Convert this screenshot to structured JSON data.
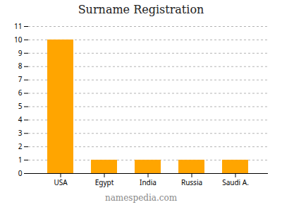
{
  "chart_data": {
    "type": "bar",
    "title": "Surname Registration",
    "categories": [
      "USA",
      "Egypt",
      "India",
      "Russia",
      "Saudi A."
    ],
    "values": [
      10,
      1,
      1,
      1,
      1
    ],
    "color": "#FFA500",
    "ylim": [
      0,
      11
    ],
    "yticks": [
      0,
      1,
      2,
      3,
      4,
      5,
      6,
      7,
      8,
      9,
      10,
      11
    ],
    "grid": true,
    "caption": "namespedia.com"
  }
}
